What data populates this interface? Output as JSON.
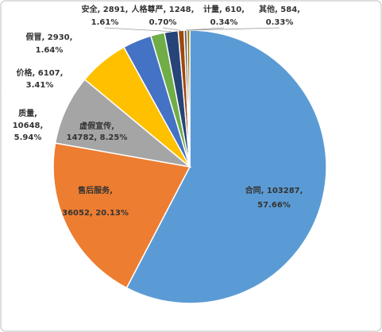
{
  "chart_data": {
    "type": "pie",
    "values": [
      103287,
      36052,
      14782,
      10648,
      6107,
      2930,
      2891,
      1248,
      610,
      584
    ],
    "value_labels": [
      [
        "合同, 103287,",
        "57.66%"
      ],
      [
        "售后服务,",
        "36052, 20.13%"
      ],
      [
        "虚假宣传,",
        "14782, 8.25%"
      ],
      [
        "质量,",
        "10648,",
        "5.94%"
      ],
      [
        "价格, 6107,",
        "3.41%"
      ],
      [
        "假冒, 2930,",
        "1.64%"
      ],
      [
        "安全, 2891,",
        "1.61%"
      ],
      [
        "人格尊严, 1248,",
        "0.70%"
      ],
      [
        "计量, 610,",
        "0.34%"
      ],
      [
        "其他, 584,",
        "0.33%"
      ]
    ],
    "colors": [
      "#5b9bd5",
      "#ed7d31",
      "#a5a5a5",
      "#ffc000",
      "#4472c4",
      "#70ad47",
      "#264478",
      "#9e480e",
      "#636363",
      "#997300"
    ]
  }
}
